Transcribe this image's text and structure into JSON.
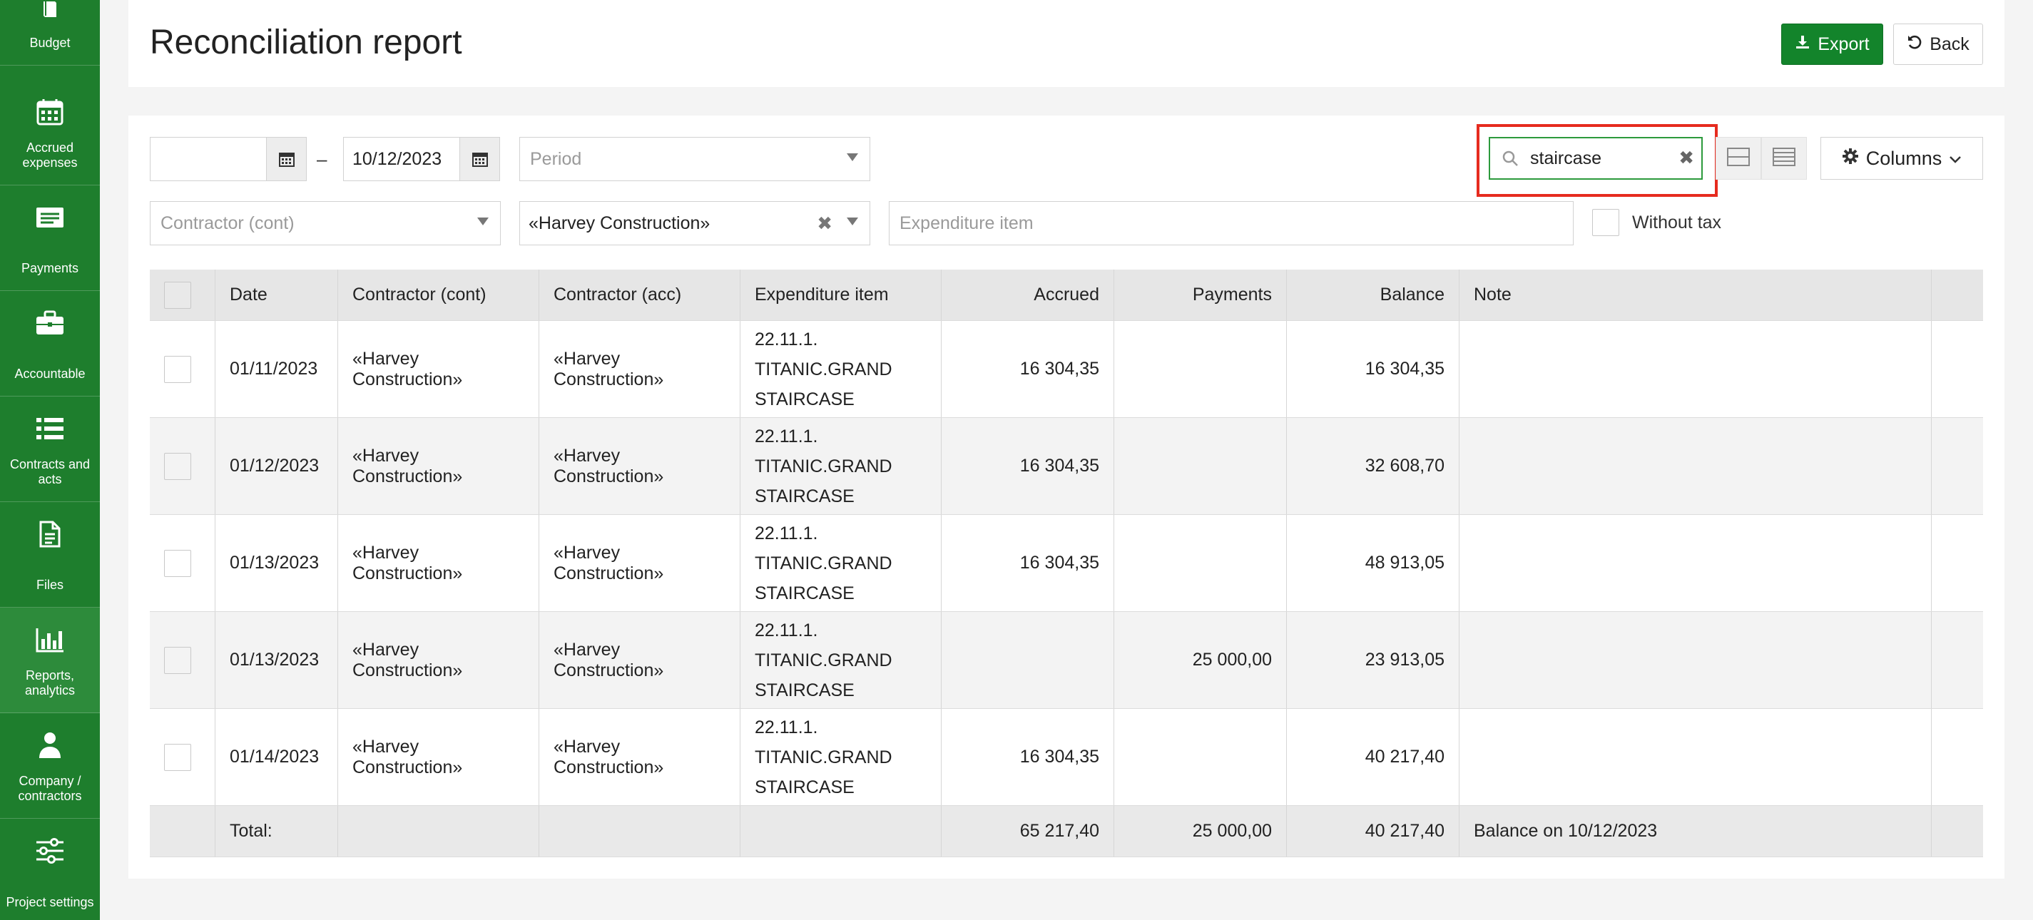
{
  "sidebar": {
    "items": [
      {
        "label": "Budget",
        "icon": "book-icon"
      },
      {
        "label": "Accrued expenses",
        "icon": "calendar-icon"
      },
      {
        "label": "Payments",
        "icon": "money-icon"
      },
      {
        "label": "Accountable",
        "icon": "briefcase-icon"
      },
      {
        "label": "Contracts and acts",
        "icon": "list-icon"
      },
      {
        "label": "Files",
        "icon": "file-icon"
      },
      {
        "label": "Reports, analytics",
        "icon": "bar-chart-icon"
      },
      {
        "label": "Company / contractors",
        "icon": "user-icon"
      },
      {
        "label": "Project settings",
        "icon": "sliders-icon"
      }
    ]
  },
  "header": {
    "title": "Reconciliation report",
    "export_label": "Export",
    "back_label": "Back"
  },
  "filters": {
    "date_from": "",
    "date_to": "10/12/2023",
    "period_placeholder": "Period",
    "contractor_cont_placeholder": "Contractor (cont)",
    "contractor_acc_value": "«Harvey Construction»",
    "expenditure_placeholder": "Expenditure item",
    "search_value": "staircase",
    "columns_label": "Columns",
    "without_tax_label": "Without tax"
  },
  "table": {
    "headers": [
      "Date",
      "Contractor (cont)",
      "Contractor (acc)",
      "Expenditure item",
      "Accrued",
      "Payments",
      "Balance",
      "Note"
    ],
    "rows": [
      {
        "date": "01/11/2023",
        "cont": "«Harvey Construction»",
        "acc": "«Harvey Construction»",
        "item_l1": "22.11.1.",
        "item_l2": "TITANIC.GRAND",
        "item_l3": "STAIRCASE",
        "accrued": "16 304,35",
        "payments": "",
        "balance": "16 304,35",
        "note": ""
      },
      {
        "date": "01/12/2023",
        "cont": "«Harvey Construction»",
        "acc": "«Harvey Construction»",
        "item_l1": "22.11.1.",
        "item_l2": "TITANIC.GRAND",
        "item_l3": "STAIRCASE",
        "accrued": "16 304,35",
        "payments": "",
        "balance": "32 608,70",
        "note": ""
      },
      {
        "date": "01/13/2023",
        "cont": "«Harvey Construction»",
        "acc": "«Harvey Construction»",
        "item_l1": "22.11.1.",
        "item_l2": "TITANIC.GRAND",
        "item_l3": "STAIRCASE",
        "accrued": "16 304,35",
        "payments": "",
        "balance": "48 913,05",
        "note": ""
      },
      {
        "date": "01/13/2023",
        "cont": "«Harvey Construction»",
        "acc": "«Harvey Construction»",
        "item_l1": "22.11.1.",
        "item_l2": "TITANIC.GRAND",
        "item_l3": "STAIRCASE",
        "accrued": "",
        "payments": "25 000,00",
        "balance": "23 913,05",
        "note": ""
      },
      {
        "date": "01/14/2023",
        "cont": "«Harvey Construction»",
        "acc": "«Harvey Construction»",
        "item_l1": "22.11.1.",
        "item_l2": "TITANIC.GRAND",
        "item_l3": "STAIRCASE",
        "accrued": "16 304,35",
        "payments": "",
        "balance": "40 217,40",
        "note": ""
      }
    ],
    "total": {
      "label": "Total:",
      "accrued": "65 217,40",
      "payments": "25 000,00",
      "balance": "40 217,40",
      "note": "Balance on 10/12/2023"
    }
  },
  "colors": {
    "sidebar": "#1e7e2d",
    "accent": "#13842b",
    "highlight": "#e62b1f"
  }
}
